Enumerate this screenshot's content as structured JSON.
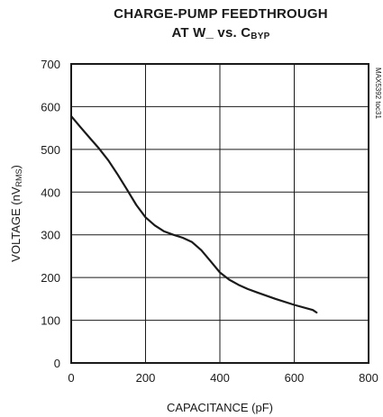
{
  "chart_data": {
    "type": "line",
    "title_line1": "CHARGE-PUMP FEEDTHROUGH",
    "title_line2_prefix": "AT W_ vs. C",
    "title_line2_sub": "BYP",
    "xlabel": "CAPACITANCE (pF)",
    "ylabel_prefix": "VOLTAGE (nV",
    "ylabel_sub": "RMS",
    "ylabel_suffix": ")",
    "side_note": "MAX5392 toc31",
    "xlim": [
      0,
      800
    ],
    "ylim": [
      0,
      700
    ],
    "xticks": [
      0,
      200,
      400,
      600,
      800
    ],
    "yticks": [
      0,
      100,
      200,
      300,
      400,
      500,
      600,
      700
    ],
    "grid": true,
    "series": [
      {
        "color": "#1a1a1a",
        "x": [
          0,
          25,
          50,
          75,
          100,
          125,
          150,
          175,
          200,
          225,
          250,
          275,
          300,
          325,
          350,
          375,
          400,
          425,
          450,
          475,
          500,
          550,
          600,
          650,
          660
        ],
        "y": [
          578,
          552,
          527,
          502,
          474,
          441,
          406,
          370,
          341,
          322,
          308,
          300,
          293,
          283,
          264,
          238,
          212,
          195,
          183,
          173,
          165,
          150,
          136,
          124,
          118
        ]
      }
    ]
  }
}
